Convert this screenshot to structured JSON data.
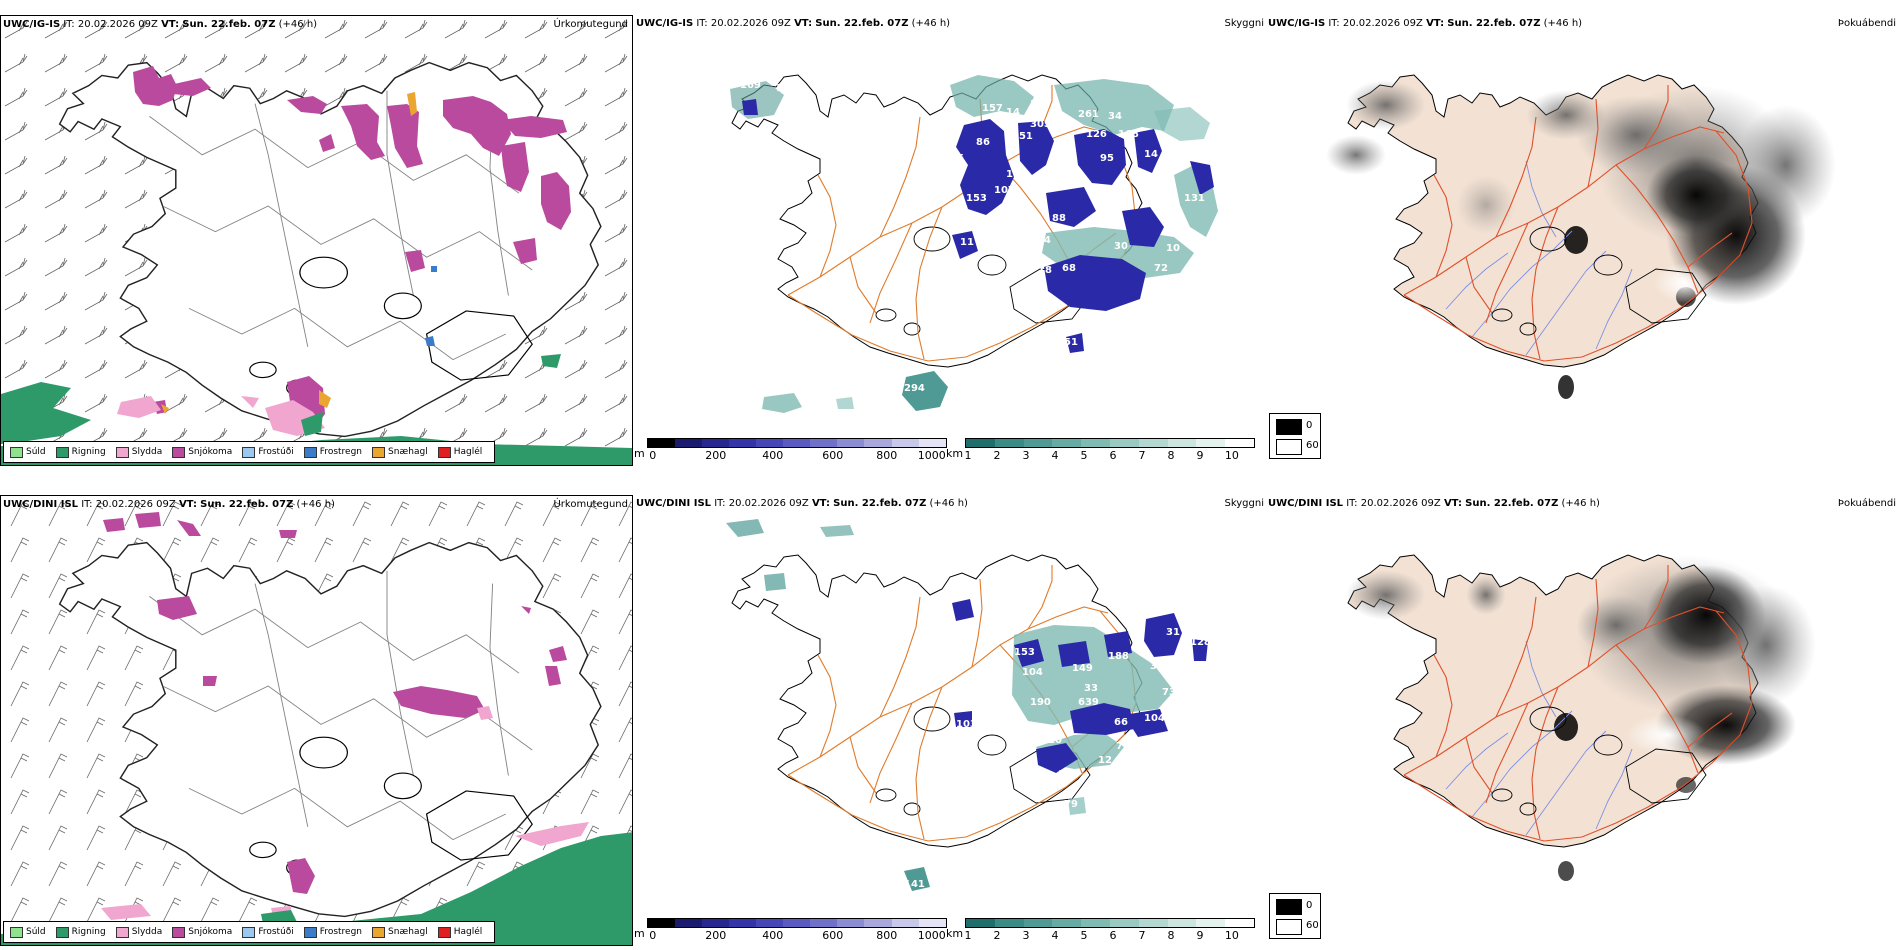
{
  "rows": [
    {
      "model": "UWC/IG-IS",
      "it_label": "IT:",
      "it_time": "20.02.2026 09Z",
      "vt_label": "VT:",
      "vt_time": "Sun. 22.feb. 07Z",
      "lead": "(+46 h)",
      "right_titles": [
        "Úrkomutegund",
        "Skyggni",
        "Þokuábendi"
      ],
      "visibility_labels": [
        {
          "text": "169"
        },
        {
          "text": "17"
        },
        {
          "text": "157"
        },
        {
          "text": "14"
        },
        {
          "text": "337"
        },
        {
          "text": "305"
        },
        {
          "text": "261"
        },
        {
          "text": "34"
        },
        {
          "text": "126"
        },
        {
          "text": "168"
        },
        {
          "text": "85"
        },
        {
          "text": "86"
        },
        {
          "text": "151"
        },
        {
          "text": "95"
        },
        {
          "text": "14"
        },
        {
          "text": "150"
        },
        {
          "text": "107"
        },
        {
          "text": "153"
        },
        {
          "text": "131"
        },
        {
          "text": "88"
        },
        {
          "text": "11"
        },
        {
          "text": "124"
        },
        {
          "text": "30"
        },
        {
          "text": "72"
        },
        {
          "text": "10"
        },
        {
          "text": "68"
        },
        {
          "text": "18"
        },
        {
          "text": "51"
        },
        {
          "text": "294"
        }
      ]
    },
    {
      "model": "UWC/DINI ISL",
      "it_label": "IT:",
      "it_time": "20.02.2026 09Z",
      "vt_label": "VT:",
      "vt_time": "Sun. 22.feb. 07Z",
      "lead": "(+46 h)",
      "right_titles": [
        "Úrkomutegund",
        "Skyggni",
        "Þokuábendi"
      ],
      "visibility_labels": [
        {
          "text": "103"
        },
        {
          "text": "153"
        },
        {
          "text": "149"
        },
        {
          "text": "188"
        },
        {
          "text": "128"
        },
        {
          "text": "36"
        },
        {
          "text": "104"
        },
        {
          "text": "33"
        },
        {
          "text": "190"
        },
        {
          "text": "639"
        },
        {
          "text": "73"
        },
        {
          "text": "66"
        },
        {
          "text": "104"
        },
        {
          "text": "103"
        },
        {
          "text": "20"
        },
        {
          "text": "10"
        },
        {
          "text": "79"
        },
        {
          "text": "12"
        },
        {
          "text": "141"
        },
        {
          "text": "79"
        },
        {
          "text": "141"
        },
        {
          "text": "31"
        }
      ]
    }
  ],
  "legend": [
    {
      "label": "Súld",
      "color": "#8ee48e"
    },
    {
      "label": "Rigning",
      "color": "#2e9a6a"
    },
    {
      "label": "Slydda",
      "color": "#f0a6cf"
    },
    {
      "label": "Snjókoma",
      "color": "#b94a9e"
    },
    {
      "label": "Frostúði",
      "color": "#9cc8f0"
    },
    {
      "label": "Frostregn",
      "color": "#3a7cc9"
    },
    {
      "label": "Snæhagl",
      "color": "#eba531"
    },
    {
      "label": "Haglél",
      "color": "#e02020"
    }
  ],
  "cloud_base_bar": {
    "unit": "m",
    "ticks": [
      "0",
      "200",
      "400",
      "600",
      "800",
      "1000"
    ],
    "colors": [
      "#000000",
      "#1a1a6e",
      "#27278f",
      "#3434a8",
      "#4646b6",
      "#5a5ac0",
      "#7070c8",
      "#8c8cd2",
      "#a8a8dc",
      "#c8c8ea",
      "#e4e4f6"
    ]
  },
  "visibility_bar": {
    "unit": "km",
    "ticks": [
      "1",
      "2",
      "3",
      "4",
      "5",
      "6",
      "7",
      "8",
      "9",
      "10"
    ],
    "colors": [
      "#1e6e6e",
      "#3a8a86",
      "#4f9a95",
      "#66aaa4",
      "#7fbab3",
      "#98c9c2",
      "#b2d8d1",
      "#cbe6df",
      "#e4f3ee",
      "#ffffff"
    ]
  },
  "fog_legend": [
    {
      "label": "0",
      "color": "#000000"
    },
    {
      "label": "60",
      "color": "#ffffff"
    }
  ],
  "colors": {
    "road": "#e07b2a",
    "road_fog": "#e0502a",
    "land_fog": "#f3e2d4",
    "river": "#7d8fe0",
    "coast": "#000000",
    "wind_barb": "#555555"
  }
}
